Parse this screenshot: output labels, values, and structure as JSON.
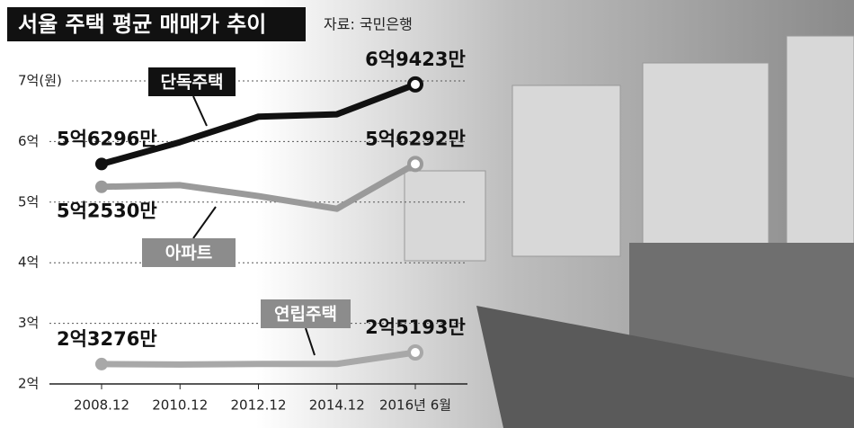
{
  "chart_data": {
    "type": "line",
    "title": "서울 주택 평균 매매가 추이",
    "source": "자료: 국민은행",
    "categories": [
      "2008.12",
      "2010.12",
      "2012.12",
      "2014.12",
      "2016년 6월"
    ],
    "series": [
      {
        "name": "단독주택",
        "color": "#111111",
        "values": [
          5.6296,
          5.99,
          6.41,
          6.45,
          6.9423
        ],
        "value_labels": [
          "5억6296만",
          null,
          null,
          null,
          "6억9423만"
        ]
      },
      {
        "name": "아파트",
        "color": "#9a9a9a",
        "values": [
          5.253,
          5.28,
          5.1,
          4.89,
          5.6292
        ],
        "value_labels": [
          "5억2530만",
          null,
          null,
          null,
          "5억6292만"
        ]
      },
      {
        "name": "연립주택",
        "color": "#a8a8a8",
        "values": [
          2.3276,
          2.32,
          2.33,
          2.33,
          2.5193
        ],
        "value_labels": [
          "2억3276만",
          null,
          null,
          null,
          "2억5193만"
        ]
      }
    ],
    "ylim": [
      2,
      7
    ],
    "yticks": [
      {
        "value": 2,
        "label": "2억"
      },
      {
        "value": 3,
        "label": "3억"
      },
      {
        "value": 4,
        "label": "4억"
      },
      {
        "value": 5,
        "label": "5억"
      },
      {
        "value": 6,
        "label": "6억"
      },
      {
        "value": 7,
        "label": "7억(원)"
      }
    ],
    "grid": true
  }
}
